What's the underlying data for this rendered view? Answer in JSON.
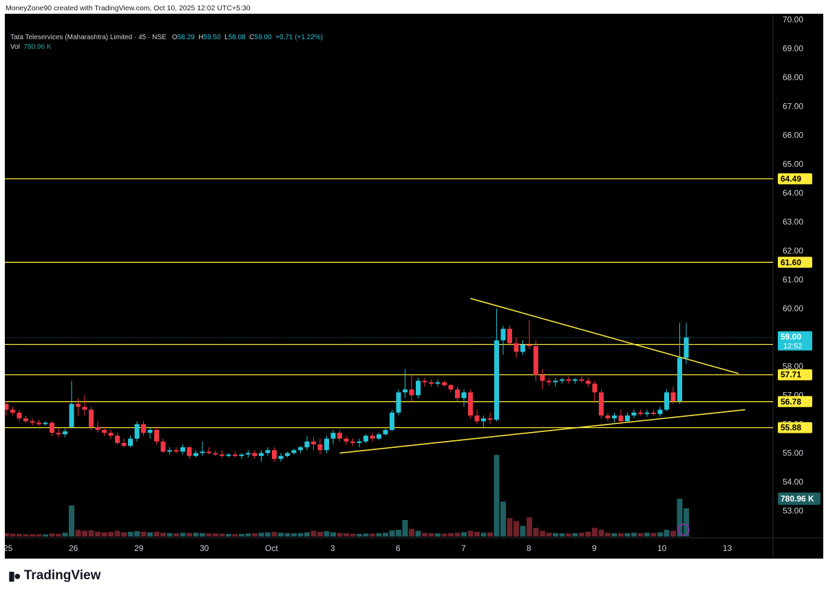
{
  "header": {
    "text": "MoneyZone90 created with TradingView.com, Oct 10, 2025 12:02 UTC+5:30"
  },
  "legend": {
    "symbol": "Tata Teleservices (Maharashtra) Limited · 45 · NSE",
    "o_label": "O",
    "o": "58.29",
    "h_label": "H",
    "h": "59.50",
    "l_label": "L",
    "l": "58.08",
    "c_label": "C",
    "c": "59.00",
    "change": "+0.71 (+1.22%)",
    "vol_label": "Vol",
    "vol": "780.96 K"
  },
  "brand": {
    "name": "TradingView"
  },
  "colors": {
    "bull": "#26c6da",
    "bear": "#f23645",
    "level": "#ffeb3b",
    "bg": "#000000",
    "vol_bull": "#1f5f61",
    "vol_bear": "#6e2229"
  },
  "chart_data": {
    "type": "candlestick",
    "ylim": [
      52.3,
      70.2
    ],
    "y_ticks": [
      "70.00",
      "69.00",
      "68.00",
      "67.00",
      "66.00",
      "65.00",
      "64.00",
      "63.00",
      "62.00",
      "61.00",
      "60.00",
      "59.00",
      "58.00",
      "57.00",
      "56.00",
      "55.00",
      "54.00",
      "53.00"
    ],
    "x_ticks": [
      {
        "label": "25",
        "i": 0
      },
      {
        "label": "26",
        "i": 10
      },
      {
        "label": "29",
        "i": 20
      },
      {
        "label": "30",
        "i": 30
      },
      {
        "label": "Oct",
        "i": 40
      },
      {
        "label": "3",
        "i": 50
      },
      {
        "label": "6",
        "i": 60
      },
      {
        "label": "7",
        "i": 70
      },
      {
        "label": "8",
        "i": 80
      },
      {
        "label": "9",
        "i": 90
      },
      {
        "label": "10",
        "i": 100
      },
      {
        "label": "13",
        "i": 110
      }
    ],
    "candles": [
      [
        56.7,
        56.8,
        56.3,
        56.5,
        0.18
      ],
      [
        56.5,
        56.6,
        56.3,
        56.4,
        0.15
      ],
      [
        56.4,
        56.5,
        56.1,
        56.2,
        0.14
      ],
      [
        56.2,
        56.3,
        56.05,
        56.1,
        0.12
      ],
      [
        56.1,
        56.2,
        55.95,
        56.05,
        0.13
      ],
      [
        56.05,
        56.15,
        55.95,
        56.0,
        0.12
      ],
      [
        56.0,
        56.1,
        55.95,
        56.05,
        0.11
      ],
      [
        56.05,
        56.1,
        55.6,
        55.7,
        0.16
      ],
      [
        55.7,
        55.85,
        55.55,
        55.65,
        0.14
      ],
      [
        55.65,
        55.85,
        55.55,
        55.75,
        0.2
      ],
      [
        55.9,
        57.5,
        55.85,
        56.7,
        1.6
      ],
      [
        56.7,
        56.9,
        56.3,
        56.6,
        0.35
      ],
      [
        56.6,
        57.0,
        56.3,
        56.5,
        0.3
      ],
      [
        56.5,
        56.6,
        55.8,
        55.9,
        0.32
      ],
      [
        55.9,
        56.1,
        55.7,
        55.8,
        0.25
      ],
      [
        55.8,
        55.9,
        55.6,
        55.7,
        0.22
      ],
      [
        55.7,
        55.8,
        55.5,
        55.6,
        0.24
      ],
      [
        55.6,
        55.7,
        55.3,
        55.35,
        0.3
      ],
      [
        55.35,
        55.5,
        55.2,
        55.25,
        0.22
      ],
      [
        55.25,
        55.6,
        55.2,
        55.5,
        0.25
      ],
      [
        55.5,
        56.1,
        55.4,
        56.0,
        0.28
      ],
      [
        56.0,
        56.1,
        55.6,
        55.7,
        0.25
      ],
      [
        55.7,
        55.9,
        55.5,
        55.8,
        0.22
      ],
      [
        55.8,
        55.9,
        55.3,
        55.4,
        0.25
      ],
      [
        55.4,
        55.5,
        55.0,
        55.05,
        0.2
      ],
      [
        55.05,
        55.2,
        54.95,
        55.1,
        0.18
      ],
      [
        55.1,
        55.2,
        55.0,
        55.05,
        0.17
      ],
      [
        55.05,
        55.3,
        54.95,
        55.2,
        0.2
      ],
      [
        55.2,
        55.25,
        54.8,
        54.9,
        0.19
      ],
      [
        54.9,
        55.1,
        54.85,
        55.0,
        0.2
      ],
      [
        55.0,
        55.4,
        54.9,
        55.05,
        0.18
      ],
      [
        55.05,
        55.2,
        54.95,
        55.0,
        0.17
      ],
      [
        55.0,
        55.1,
        54.9,
        54.95,
        0.16
      ],
      [
        54.95,
        55.1,
        54.85,
        54.9,
        0.15
      ],
      [
        54.9,
        55.0,
        54.85,
        54.95,
        0.14
      ],
      [
        54.95,
        55.05,
        54.85,
        54.9,
        0.13
      ],
      [
        54.9,
        55.0,
        54.8,
        54.95,
        0.14
      ],
      [
        54.95,
        55.1,
        54.85,
        55.0,
        0.16
      ],
      [
        55.0,
        55.1,
        54.8,
        54.9,
        0.17
      ],
      [
        54.9,
        55.1,
        54.7,
        55.0,
        0.2
      ],
      [
        55.0,
        55.2,
        54.9,
        55.1,
        0.22
      ],
      [
        55.1,
        55.2,
        54.7,
        54.8,
        0.24
      ],
      [
        54.8,
        55.0,
        54.7,
        54.9,
        0.2
      ],
      [
        54.9,
        55.05,
        54.85,
        55.0,
        0.18
      ],
      [
        55.0,
        55.15,
        54.95,
        55.1,
        0.17
      ],
      [
        55.1,
        55.25,
        55.0,
        55.2,
        0.18
      ],
      [
        55.2,
        55.6,
        55.1,
        55.4,
        0.22
      ],
      [
        55.4,
        55.55,
        55.1,
        55.3,
        0.3
      ],
      [
        55.3,
        55.5,
        54.95,
        55.1,
        0.25
      ],
      [
        55.1,
        55.6,
        55.0,
        55.5,
        0.28
      ],
      [
        55.5,
        55.8,
        55.3,
        55.7,
        0.22
      ],
      [
        55.7,
        55.8,
        55.4,
        55.5,
        0.18
      ],
      [
        55.5,
        55.6,
        55.3,
        55.4,
        0.17
      ],
      [
        55.4,
        55.5,
        55.25,
        55.35,
        0.15
      ],
      [
        55.35,
        55.5,
        55.2,
        55.4,
        0.14
      ],
      [
        55.4,
        55.65,
        55.35,
        55.6,
        0.16
      ],
      [
        55.6,
        55.7,
        55.4,
        55.5,
        0.15
      ],
      [
        55.5,
        55.7,
        55.45,
        55.65,
        0.17
      ],
      [
        55.65,
        55.85,
        55.6,
        55.8,
        0.2
      ],
      [
        55.8,
        56.5,
        55.75,
        56.4,
        0.32
      ],
      [
        56.4,
        57.2,
        56.3,
        57.1,
        0.35
      ],
      [
        57.1,
        57.9,
        56.9,
        57.2,
        0.85
      ],
      [
        57.2,
        57.7,
        56.8,
        57.0,
        0.4
      ],
      [
        57.0,
        57.6,
        56.9,
        57.5,
        0.3
      ],
      [
        57.5,
        57.6,
        57.3,
        57.45,
        0.2
      ],
      [
        57.45,
        57.55,
        57.3,
        57.4,
        0.18
      ],
      [
        57.4,
        57.55,
        57.3,
        57.45,
        0.17
      ],
      [
        57.45,
        57.5,
        57.3,
        57.35,
        0.16
      ],
      [
        57.35,
        57.4,
        57.1,
        57.2,
        0.18
      ],
      [
        57.2,
        57.3,
        56.8,
        56.9,
        0.2
      ],
      [
        56.9,
        57.2,
        56.6,
        57.1,
        0.22
      ],
      [
        57.1,
        57.2,
        56.2,
        56.3,
        0.3
      ],
      [
        56.3,
        56.5,
        56.0,
        56.1,
        0.25
      ],
      [
        56.1,
        56.3,
        55.9,
        56.2,
        0.2
      ],
      [
        56.2,
        56.4,
        56.0,
        56.15,
        0.22
      ],
      [
        56.15,
        60.0,
        56.1,
        58.9,
        4.2
      ],
      [
        58.9,
        59.4,
        58.4,
        59.3,
        1.8
      ],
      [
        59.3,
        59.4,
        58.7,
        58.8,
        0.95
      ],
      [
        58.8,
        59.0,
        58.3,
        58.5,
        0.8
      ],
      [
        58.5,
        58.9,
        58.4,
        58.75,
        0.55
      ],
      [
        58.75,
        59.6,
        58.6,
        58.7,
        1.0
      ],
      [
        58.7,
        58.9,
        57.5,
        57.7,
        0.45
      ],
      [
        57.7,
        57.9,
        57.2,
        57.5,
        0.3
      ],
      [
        57.5,
        57.6,
        57.35,
        57.45,
        0.2
      ],
      [
        57.45,
        57.6,
        57.3,
        57.5,
        0.18
      ],
      [
        57.5,
        57.6,
        57.4,
        57.55,
        0.17
      ],
      [
        57.55,
        57.65,
        57.4,
        57.5,
        0.16
      ],
      [
        57.5,
        57.6,
        57.4,
        57.55,
        0.18
      ],
      [
        57.55,
        57.65,
        57.45,
        57.5,
        0.2
      ],
      [
        57.5,
        57.6,
        57.3,
        57.4,
        0.25
      ],
      [
        57.4,
        57.5,
        56.8,
        57.1,
        0.45
      ],
      [
        57.1,
        57.2,
        56.2,
        56.3,
        0.35
      ],
      [
        56.3,
        56.4,
        56.1,
        56.2,
        0.2
      ],
      [
        56.2,
        56.4,
        56.05,
        56.3,
        0.18
      ],
      [
        56.3,
        56.5,
        56.0,
        56.1,
        0.17
      ],
      [
        56.1,
        56.4,
        56.05,
        56.3,
        0.18
      ],
      [
        56.3,
        56.5,
        56.2,
        56.4,
        0.2
      ],
      [
        56.4,
        56.5,
        56.3,
        56.35,
        0.18
      ],
      [
        56.35,
        56.5,
        56.25,
        56.4,
        0.2
      ],
      [
        56.4,
        56.5,
        56.3,
        56.35,
        0.19
      ],
      [
        56.35,
        56.6,
        56.25,
        56.5,
        0.22
      ],
      [
        56.5,
        57.2,
        56.45,
        57.1,
        0.35
      ],
      [
        57.1,
        57.3,
        56.7,
        56.8,
        0.3
      ],
      [
        56.8,
        59.5,
        56.7,
        58.3,
        1.95
      ],
      [
        58.29,
        59.5,
        58.08,
        59.0,
        1.45
      ]
    ],
    "levels": [
      {
        "value": 64.49,
        "label": "64.49"
      },
      {
        "value": 61.6,
        "label": "61.60"
      },
      {
        "value": 58.76,
        "label": "58.76"
      },
      {
        "value": 57.71,
        "label": "57.71"
      },
      {
        "value": 56.78,
        "label": "56.78"
      },
      {
        "value": 55.88,
        "label": "55.88"
      }
    ],
    "trendlines": [
      {
        "from": [
          71,
          60.35
        ],
        "to": [
          112,
          57.75
        ]
      },
      {
        "from": [
          51,
          55.0
        ],
        "to": [
          113,
          56.5
        ]
      }
    ],
    "last_price": {
      "value": 59.0,
      "label": "59.00",
      "timer": "12:52"
    },
    "volume_badge": {
      "value": 1.95,
      "label": "780.96 K"
    },
    "volume_max": 4.6
  }
}
